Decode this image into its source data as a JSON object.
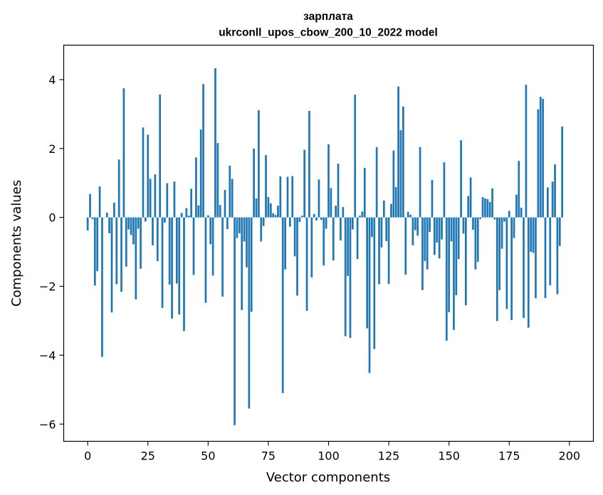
{
  "chart_data": {
    "type": "bar",
    "title_line1": "зарплата",
    "title_line2": "ukrconll_upos_cbow_200_10_2022 model",
    "xlabel": "Vector components",
    "ylabel": "Components values",
    "xlim": [
      -9.95,
      209.95
    ],
    "ylim": [
      -6.5,
      5.0
    ],
    "xticks": [
      0,
      25,
      50,
      75,
      100,
      125,
      150,
      175,
      200
    ],
    "yticks": [
      -6,
      -4,
      -2,
      0,
      2,
      4
    ],
    "ytick_labels": [
      "−6",
      "−4",
      "−2",
      "0",
      "2",
      "4"
    ],
    "bar_color": "#1f77b4",
    "grid": false,
    "values": [
      -0.38,
      0.68,
      -0.05,
      -1.98,
      -1.56,
      0.9,
      -4.05,
      0.0,
      0.14,
      -0.46,
      -2.76,
      0.43,
      -1.94,
      1.68,
      -2.16,
      3.75,
      -1.43,
      -0.35,
      -0.51,
      -0.78,
      -2.38,
      -0.33,
      -1.49,
      2.61,
      -0.12,
      2.4,
      1.12,
      -0.81,
      1.25,
      -1.27,
      3.57,
      -2.63,
      -0.15,
      0.99,
      -1.95,
      -2.94,
      1.04,
      -1.92,
      -2.82,
      0.13,
      -3.3,
      0.27,
      0.05,
      0.83,
      -1.67,
      1.74,
      0.35,
      2.55,
      3.87,
      -2.48,
      0.06,
      -0.78,
      -1.69,
      4.33,
      2.16,
      0.36,
      -2.3,
      0.8,
      -0.34,
      1.5,
      1.12,
      -6.03,
      -0.6,
      -0.46,
      -2.69,
      -0.7,
      -1.45,
      -5.55,
      -2.74,
      2.0,
      0.55,
      3.11,
      -0.7,
      -0.25,
      1.81,
      0.59,
      0.41,
      0.12,
      0.07,
      0.34,
      1.19,
      -5.1,
      -1.51,
      1.18,
      -0.27,
      1.2,
      -1.13,
      -2.27,
      -0.13,
      0.05,
      1.96,
      -2.71,
      3.09,
      -1.74,
      0.1,
      -0.09,
      1.1,
      -0.07,
      -1.4,
      -0.33,
      2.12,
      0.85,
      -1.25,
      0.34,
      1.56,
      -0.67,
      0.3,
      -3.45,
      -1.7,
      -3.5,
      -0.35,
      3.56,
      -1.21,
      0.05,
      0.17,
      1.44,
      -3.22,
      -4.52,
      -0.57,
      -3.82,
      2.04,
      -1.94,
      -0.87,
      0.49,
      -0.69,
      -1.93,
      0.39,
      1.94,
      0.88,
      3.8,
      2.53,
      3.22,
      -1.66,
      0.16,
      0.08,
      -0.81,
      -0.37,
      -0.53,
      2.04,
      -2.11,
      -1.27,
      -1.51,
      -0.42,
      1.09,
      -1.09,
      -0.73,
      -1.19,
      -0.64,
      1.6,
      -3.58,
      -2.75,
      -0.7,
      -3.27,
      -2.26,
      -1.21,
      2.24,
      -0.47,
      -2.55,
      0.62,
      1.16,
      -0.36,
      -1.51,
      -1.29,
      -0.05,
      0.59,
      0.55,
      0.53,
      0.45,
      0.84,
      -0.06,
      -3.01,
      -2.11,
      -0.91,
      -0.12,
      -2.66,
      0.19,
      -2.98,
      -0.6,
      0.66,
      1.64,
      0.28,
      -2.92,
      3.85,
      -3.2,
      -1.0,
      -1.03,
      -2.35,
      3.14,
      3.5,
      3.44,
      -2.34,
      0.87,
      -1.97,
      1.04,
      1.54,
      -2.23,
      -0.83,
      2.64
    ]
  }
}
